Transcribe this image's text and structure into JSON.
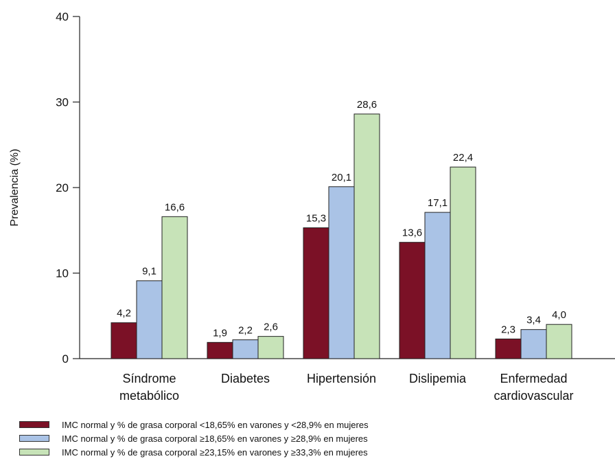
{
  "chart_data": {
    "type": "bar",
    "ylabel": "Prevalencia (%)",
    "ylim": [
      0,
      40
    ],
    "yticks": [
      "0",
      "10",
      "20",
      "30",
      "40"
    ],
    "categories": [
      [
        "Síndrome",
        "metabólico"
      ],
      [
        "Diabetes"
      ],
      [
        "Hipertensión"
      ],
      [
        "Dislipemia"
      ],
      [
        "Enfermedad",
        "cardiovascular"
      ]
    ],
    "series": [
      {
        "name": "IMC normal y % de grasa corporal <18,65% en varones y <28,9% en mujeres",
        "color": "#7b1126",
        "values": [
          4.2,
          1.9,
          15.3,
          13.6,
          2.3
        ],
        "labels": [
          "4,2",
          "1,9",
          "15,3",
          "13,6",
          "2,3"
        ]
      },
      {
        "name": "IMC normal y % de grasa corporal ≥18,65% en varones y ≥28,9% en mujeres",
        "color": "#aac3e6",
        "values": [
          9.1,
          2.2,
          20.1,
          17.1,
          3.4
        ],
        "labels": [
          "9,1",
          "2,2",
          "20,1",
          "17,1",
          "3,4"
        ]
      },
      {
        "name": "IMC normal y % de grasa corporal ≥23,15% en varones y ≥33,3% en mujeres",
        "color": "#c7e3b8",
        "values": [
          16.6,
          2.6,
          28.6,
          22.4,
          4.0
        ],
        "labels": [
          "16,6",
          "2,6",
          "28,6",
          "22,4",
          "4,0"
        ]
      }
    ],
    "grid": false,
    "legend_position": "bottom"
  }
}
